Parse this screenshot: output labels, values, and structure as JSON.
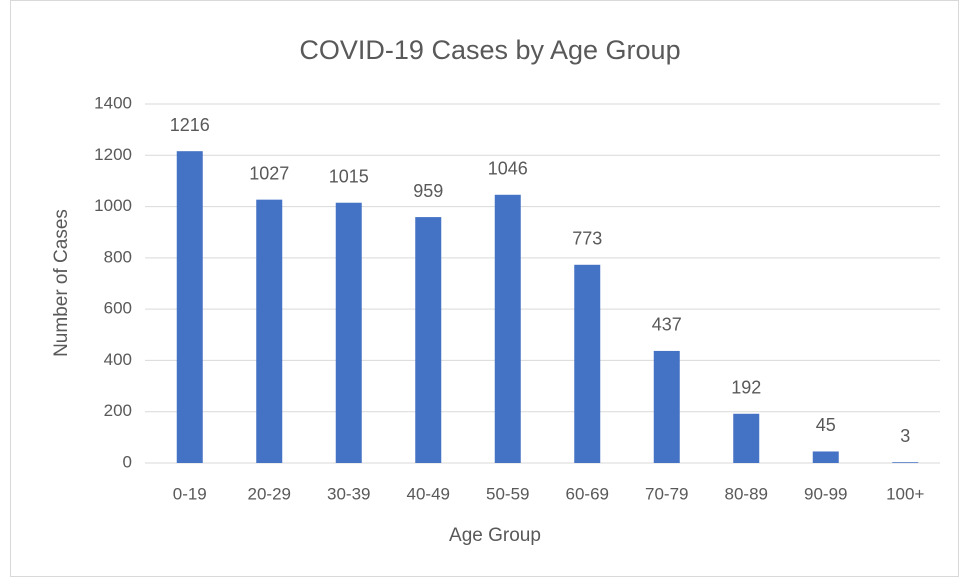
{
  "chart_data": {
    "type": "bar",
    "title": "COVID-19 Cases by Age Group",
    "x_label": "Age Group",
    "y_label": "Number of Cases",
    "categories": [
      "0-19",
      "20-29",
      "30-39",
      "40-49",
      "50-59",
      "60-69",
      "70-79",
      "80-89",
      "90-99",
      "100+"
    ],
    "values": [
      1216,
      1027,
      1015,
      959,
      1046,
      773,
      437,
      192,
      45,
      3
    ],
    "color": "#4472c4",
    "ylim": [
      0,
      1400
    ],
    "yticks": [
      0,
      200,
      400,
      600,
      800,
      1000,
      1200,
      1400
    ],
    "grid": true
  }
}
